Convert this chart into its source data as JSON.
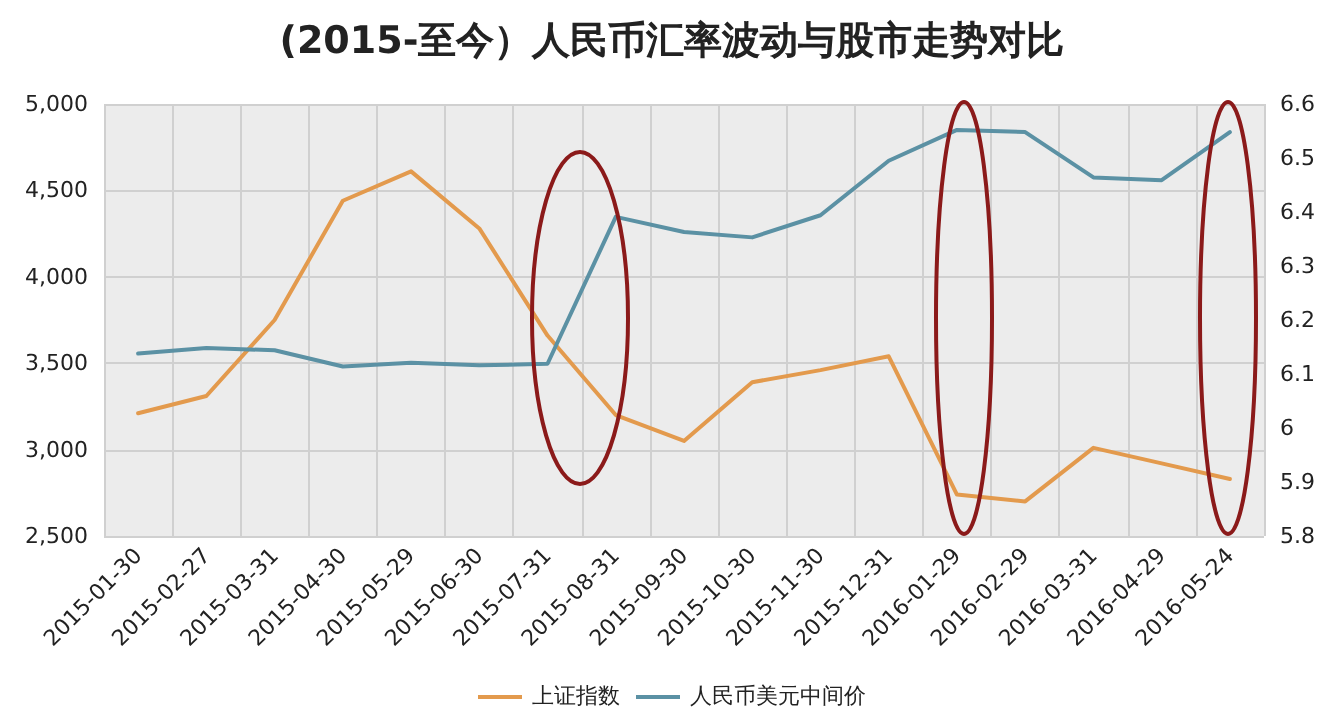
{
  "chart_data": {
    "type": "line",
    "title": "(2015-至今）人民币汇率波动与股市走势对比",
    "categories": [
      "2015-01-30",
      "2015-02-27",
      "2015-03-31",
      "2015-04-30",
      "2015-05-29",
      "2015-06-30",
      "2015-07-31",
      "2015-08-31",
      "2015-09-30",
      "2015-10-30",
      "2015-11-30",
      "2015-12-31",
      "2016-01-29",
      "2016-02-29",
      "2016-03-31",
      "2016-04-29",
      "2016-05-24"
    ],
    "series": [
      {
        "name": "上证指数",
        "color": "#e39a4d",
        "values": [
          3210,
          3310,
          3750,
          4440,
          4610,
          4280,
          3660,
          3200,
          3050,
          3390,
          3460,
          3540,
          2740,
          2700,
          3010,
          2920,
          2830
        ]
      },
      {
        "name": "人民币美元中间价",
        "color": "#5b91a4",
        "axis": "y2",
        "values": [
          6.138,
          6.148,
          6.144,
          6.114,
          6.121,
          6.116,
          6.119,
          6.391,
          6.363,
          6.353,
          6.394,
          6.495,
          6.552,
          6.548,
          6.464,
          6.459,
          6.548
        ]
      }
    ],
    "ylim": [
      2500,
      5000
    ],
    "yticks": [
      {
        "value": 2500,
        "label": "2,500"
      },
      {
        "value": 3000,
        "label": "3,000"
      },
      {
        "value": 3500,
        "label": "3,500"
      },
      {
        "value": 4000,
        "label": "4,000"
      },
      {
        "value": 4500,
        "label": "4,500"
      },
      {
        "value": 5000,
        "label": "5,000"
      }
    ],
    "y2lim": [
      5.8,
      6.6
    ],
    "y2ticks": [
      5.8,
      5.9,
      6,
      6.1,
      6.2,
      6.3,
      6.4,
      6.5,
      6.6
    ],
    "grid": true,
    "legend": "bottom",
    "marker": "none",
    "line_style": "solid"
  }
}
